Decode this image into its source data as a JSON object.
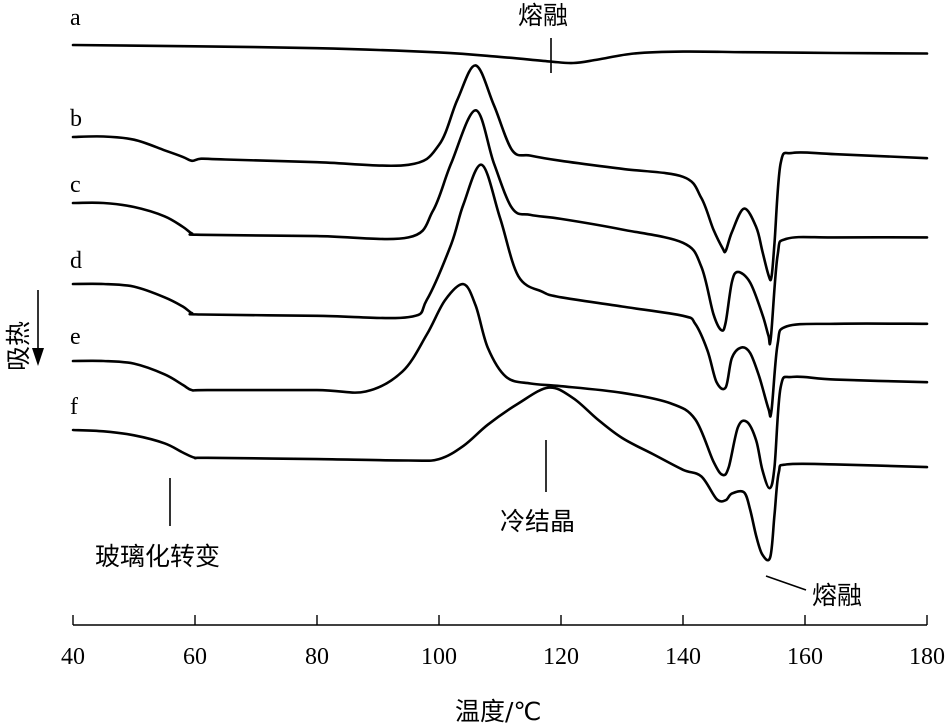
{
  "chart_data": {
    "type": "line",
    "xlabel": "温度/℃",
    "ylabel": "吸热",
    "xlim": [
      40,
      180
    ],
    "xticks": [
      40,
      60,
      80,
      100,
      120,
      140,
      160,
      180
    ],
    "grid": false,
    "series": [
      {
        "name": "a",
        "x": [
          40,
          60,
          80,
          100,
          110,
          118,
          122,
          126,
          132,
          140,
          150,
          165,
          180
        ],
        "y": [
          0.0,
          -0.05,
          -0.12,
          -0.28,
          -0.45,
          -0.62,
          -0.68,
          -0.55,
          -0.32,
          -0.25,
          -0.27,
          -0.3,
          -0.32
        ]
      },
      {
        "name": "b",
        "x": [
          40,
          45,
          50,
          55,
          58,
          59.5,
          61,
          65,
          80,
          95,
          100,
          103,
          106,
          109,
          112,
          115,
          120,
          130,
          140,
          143,
          145,
          146.5,
          147,
          148,
          150,
          152,
          153,
          154,
          154.5,
          155,
          156,
          158,
          165,
          180
        ],
        "y": [
          0.0,
          0.02,
          -0.1,
          -0.5,
          -0.75,
          -0.9,
          -0.82,
          -0.85,
          -0.95,
          -1.05,
          -0.3,
          1.4,
          2.7,
          1.2,
          -0.5,
          -0.7,
          -0.9,
          -1.2,
          -1.5,
          -2.3,
          -3.5,
          -4.2,
          -4.3,
          -3.6,
          -2.7,
          -3.4,
          -4.3,
          -5.2,
          -5.3,
          -4.0,
          -1.0,
          -0.6,
          -0.65,
          -0.8
        ]
      },
      {
        "name": "c",
        "x": [
          40,
          45,
          50,
          55,
          58,
          59.5,
          61,
          80,
          95,
          99,
          102,
          106,
          109,
          112,
          115,
          120,
          130,
          140,
          143,
          145,
          146.3,
          147,
          148,
          149,
          151,
          153,
          154,
          154.4,
          155.5,
          157,
          165,
          180
        ],
        "y": [
          0.0,
          0.0,
          -0.15,
          -0.5,
          -0.9,
          -1.15,
          -1.2,
          -1.25,
          -1.3,
          -0.3,
          1.5,
          3.5,
          1.5,
          -0.2,
          -0.45,
          -0.6,
          -1.0,
          -1.5,
          -2.4,
          -4.2,
          -4.8,
          -4.5,
          -3.0,
          -2.6,
          -3.0,
          -4.2,
          -5.0,
          -5.1,
          -2.0,
          -1.35,
          -1.3,
          -1.3
        ]
      },
      {
        "name": "d",
        "x": [
          40,
          45,
          50,
          55,
          58,
          59.5,
          61,
          80,
          95,
          98,
          102,
          104,
          107,
          110,
          113,
          117,
          120,
          130,
          140,
          142,
          144,
          145.5,
          147,
          148,
          149.5,
          151,
          152.5,
          154,
          154.5,
          155.5,
          157,
          165,
          180
        ],
        "y": [
          0.0,
          0.0,
          -0.1,
          -0.5,
          -0.85,
          -1.1,
          -1.15,
          -1.2,
          -1.25,
          -0.6,
          1.5,
          3.0,
          4.5,
          2.5,
          0.3,
          -0.3,
          -0.5,
          -0.85,
          -1.2,
          -1.5,
          -2.5,
          -3.7,
          -3.9,
          -2.8,
          -2.4,
          -2.6,
          -3.5,
          -4.7,
          -4.8,
          -2.3,
          -1.6,
          -1.5,
          -1.5
        ]
      },
      {
        "name": "e",
        "x": [
          40,
          45,
          50,
          55,
          58,
          59.5,
          62,
          80,
          88,
          94,
          98,
          101,
          104,
          106,
          108,
          111,
          115,
          120,
          130,
          138,
          142,
          145,
          146.5,
          147.5,
          149,
          150.5,
          152,
          153,
          154.2,
          155,
          156,
          158,
          165,
          180
        ],
        "y": [
          0.0,
          0.0,
          -0.1,
          -0.5,
          -0.9,
          -1.1,
          -1.1,
          -1.1,
          -1.15,
          -0.4,
          1.0,
          2.3,
          2.9,
          2.1,
          0.5,
          -0.6,
          -0.85,
          -0.95,
          -1.2,
          -1.6,
          -2.2,
          -3.8,
          -4.3,
          -4.0,
          -2.5,
          -2.3,
          -3.0,
          -4.1,
          -4.8,
          -4.0,
          -1.0,
          -0.6,
          -0.7,
          -0.8
        ]
      },
      {
        "name": "f",
        "x": [
          40,
          45,
          50,
          55,
          58,
          60,
          62,
          80,
          95,
          100,
          104,
          108,
          113,
          118,
          122,
          126,
          130,
          135,
          140,
          143,
          145.5,
          147,
          148,
          150,
          151,
          152,
          153,
          154.3,
          155,
          155.7,
          157,
          165,
          180
        ],
        "y": [
          0.0,
          -0.05,
          -0.2,
          -0.5,
          -0.85,
          -1.05,
          -1.05,
          -1.1,
          -1.15,
          -1.1,
          -0.6,
          0.2,
          1.0,
          1.6,
          1.2,
          0.4,
          -0.3,
          -0.9,
          -1.5,
          -1.75,
          -2.6,
          -2.65,
          -2.4,
          -2.35,
          -3.0,
          -4.0,
          -4.7,
          -4.8,
          -3.2,
          -1.6,
          -1.3,
          -1.3,
          -1.4
        ]
      }
    ],
    "annotations": [
      {
        "text": "熔融",
        "series": "a",
        "x": 120
      },
      {
        "text": "玻璃化转变",
        "x": 56
      },
      {
        "text": "冷结晶",
        "series": "f",
        "x": 118
      },
      {
        "text": "熔融",
        "series": "f",
        "x": 153
      }
    ]
  }
}
